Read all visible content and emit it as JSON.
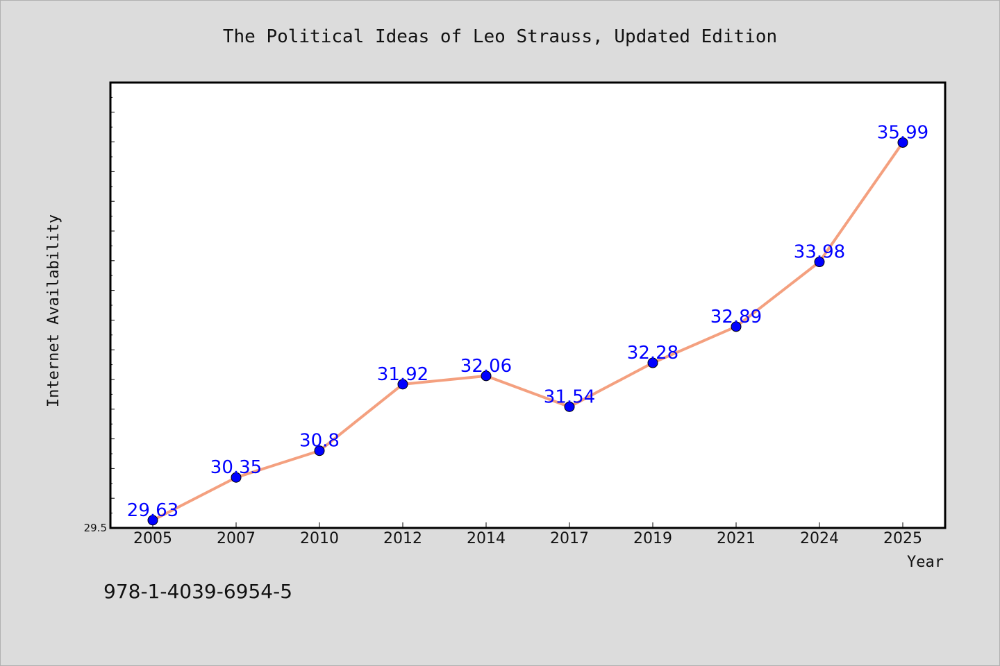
{
  "chart_data": {
    "type": "line",
    "title": "The Political Ideas of Leo Strauss, Updated Edition",
    "xlabel": "Year",
    "ylabel": "Internet Availability",
    "categories": [
      "2005",
      "2007",
      "2010",
      "2012",
      "2014",
      "2017",
      "2019",
      "2021",
      "2024",
      "2025"
    ],
    "values": [
      29.63,
      30.35,
      30.8,
      31.92,
      32.06,
      31.54,
      32.28,
      32.89,
      33.98,
      35.99
    ],
    "data_labels": [
      "29.63",
      "30.35",
      "30.8",
      "31.92",
      "32.06",
      "31.54",
      "32.28",
      "32.89",
      "33.98",
      "35.99"
    ],
    "ylim": [
      29.5,
      37.0
    ],
    "yticks_labeled": [
      "29.5"
    ],
    "grid": false,
    "legend": "none",
    "colors": {
      "line": "#f4a07f",
      "marker": "#0000ff",
      "data_label": "#0000ff",
      "background": "#dcdcdc",
      "plot_background": "#ffffff"
    }
  },
  "footer": {
    "isbn": "978-1-4039-6954-5"
  }
}
